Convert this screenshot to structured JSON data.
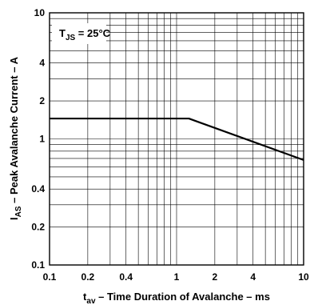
{
  "chart_data": {
    "type": "line",
    "xscale": "log",
    "yscale": "log",
    "xlim": [
      0.1,
      10
    ],
    "ylim": [
      0.1,
      10
    ],
    "grid": true,
    "x_ticks": [
      {
        "value": 0.1,
        "label": "0.1"
      },
      {
        "value": 0.2,
        "label": "0.2"
      },
      {
        "value": 0.4,
        "label": "0.4"
      },
      {
        "value": 1,
        "label": "1"
      },
      {
        "value": 2,
        "label": "2"
      },
      {
        "value": 4,
        "label": "4"
      },
      {
        "value": 10,
        "label": "10"
      }
    ],
    "y_ticks": [
      {
        "value": 0.1,
        "label": "0.1"
      },
      {
        "value": 0.2,
        "label": "0.2"
      },
      {
        "value": 0.4,
        "label": "0.4"
      },
      {
        "value": 1,
        "label": "1"
      },
      {
        "value": 2,
        "label": "2"
      },
      {
        "value": 4,
        "label": "4"
      },
      {
        "value": 10,
        "label": "10"
      }
    ],
    "xlabel": {
      "main": "t",
      "sub": "av",
      "rest": " – Time Duration of Avalanche – ms"
    },
    "ylabel": {
      "main": "I",
      "sub": "AS",
      "rest": " – Peak Avalanche Current – A"
    },
    "annotation": {
      "main": "T",
      "sub": "JS",
      "rest": " = 25°C"
    },
    "series": [
      {
        "x": [
          0.1,
          1.25,
          10
        ],
        "y": [
          1.45,
          1.45,
          0.68
        ]
      }
    ]
  }
}
